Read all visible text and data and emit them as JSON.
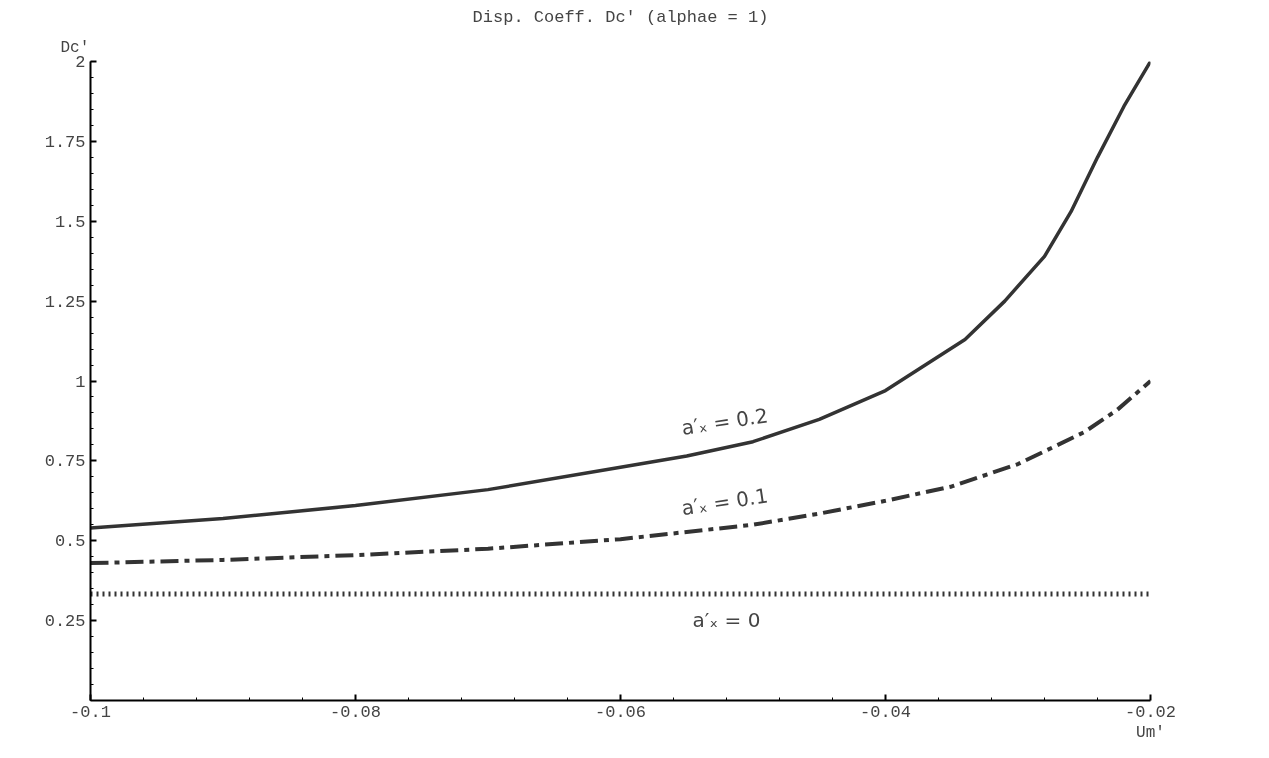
{
  "chart_data": {
    "type": "line",
    "title": "Disp. Coeff. Dc′ (alphae = 1)",
    "xlabel": "Um′",
    "ylabel": "Dc′",
    "xlim": [
      -0.1,
      -0.02
    ],
    "ylim": [
      0,
      2
    ],
    "xticks": [
      -0.1,
      -0.08,
      -0.06,
      -0.04,
      -0.02
    ],
    "yticks": [
      0.25,
      0.5,
      0.75,
      1,
      1.25,
      1.5,
      1.75,
      2
    ],
    "grid": false,
    "marker": "none",
    "series": [
      {
        "color": "#333333",
        "line_style": "solid",
        "x": [
          -0.1,
          -0.09,
          -0.08,
          -0.07,
          -0.06,
          -0.055,
          -0.05,
          -0.045,
          -0.04,
          -0.037,
          -0.034,
          -0.031,
          -0.028,
          -0.026,
          -0.024,
          -0.022,
          -0.02
        ],
        "values": [
          0.54,
          0.57,
          0.61,
          0.66,
          0.73,
          0.765,
          0.81,
          0.88,
          0.97,
          1.05,
          1.13,
          1.25,
          1.39,
          1.53,
          1.7,
          1.86,
          2.0
        ]
      },
      {
        "color": "#333333",
        "line_style": "dashdot",
        "x": [
          -0.1,
          -0.09,
          -0.08,
          -0.07,
          -0.06,
          -0.05,
          -0.045,
          -0.04,
          -0.035,
          -0.03,
          -0.025,
          -0.0225,
          -0.02
        ],
        "values": [
          0.43,
          0.44,
          0.455,
          0.475,
          0.505,
          0.55,
          0.585,
          0.625,
          0.67,
          0.74,
          0.84,
          0.91,
          1.0
        ]
      },
      {
        "color": "#333333",
        "line_style": "dotted",
        "x": [
          -0.1,
          -0.02
        ],
        "values": [
          0.333,
          0.333
        ]
      }
    ],
    "annotations": [
      "a′ₓ = 0.2",
      "a′ₓ = 0.1",
      "a′ₓ = 0"
    ]
  }
}
